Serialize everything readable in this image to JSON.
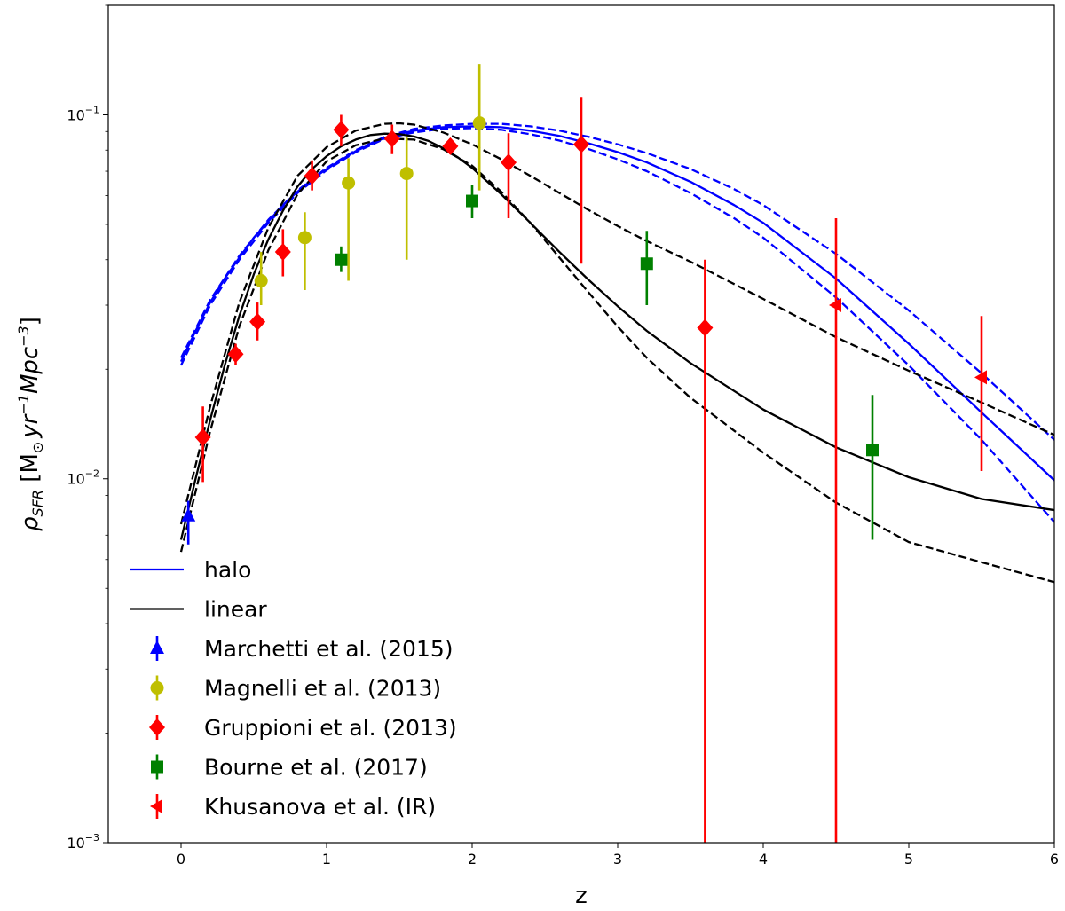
{
  "chart_data": {
    "type": "scatter",
    "title": "",
    "xlabel": "z",
    "ylabel": "ρ_SFR [M⊙ yr⁻¹ Mpc⁻³]",
    "ylabel_parts": {
      "rho": "ρ",
      "sub": "SFR",
      "open": " [M",
      "sun": "⊙",
      "yr": "yr",
      "yr_exp": "−1",
      "mpc": "Mpc",
      "mpc_exp": "−3",
      "close": "]"
    },
    "xlim": [
      -0.5,
      6.0
    ],
    "ylim": [
      0.001,
      0.2
    ],
    "yscale": "log",
    "grid": false,
    "legend_position": "lower-left",
    "x_ticks": [
      {
        "value": 0,
        "label": "0"
      },
      {
        "value": 1,
        "label": "1"
      },
      {
        "value": 2,
        "label": "2"
      },
      {
        "value": 3,
        "label": "3"
      },
      {
        "value": 4,
        "label": "4"
      },
      {
        "value": 5,
        "label": "5"
      },
      {
        "value": 6,
        "label": "6"
      }
    ],
    "y_ticks": [
      {
        "value": 0.001,
        "base": "10",
        "exp": "−3"
      },
      {
        "value": 0.01,
        "base": "10",
        "exp": "−2"
      },
      {
        "value": 0.1,
        "base": "10",
        "exp": "−1"
      }
    ],
    "model_lines": [
      {
        "name": "halo",
        "color": "#0000ff",
        "style": "solid",
        "x": [
          0.0,
          0.1,
          0.2,
          0.3,
          0.4,
          0.5,
          0.6,
          0.7,
          0.8,
          0.9,
          1.0,
          1.2,
          1.4,
          1.6,
          1.8,
          2.0,
          2.2,
          2.4,
          2.6,
          2.8,
          3.0,
          3.2,
          3.5,
          3.8,
          4.0,
          4.5,
          5.0,
          5.5,
          6.0
        ],
        "y": [
          0.021,
          0.0255,
          0.0305,
          0.0355,
          0.0405,
          0.046,
          0.051,
          0.0565,
          0.0615,
          0.0665,
          0.071,
          0.0795,
          0.0865,
          0.0905,
          0.0925,
          0.093,
          0.0925,
          0.0905,
          0.0875,
          0.0835,
          0.079,
          0.074,
          0.0655,
          0.0565,
          0.0505,
          0.0355,
          0.0235,
          0.0152,
          0.0099
        ]
      },
      {
        "name": "halo upper",
        "color": "#0000ff",
        "style": "dashed",
        "x": [
          0.0,
          0.2,
          0.4,
          0.6,
          0.8,
          1.0,
          1.2,
          1.4,
          1.6,
          1.8,
          2.0,
          2.2,
          2.4,
          2.6,
          2.8,
          3.0,
          3.2,
          3.5,
          3.8,
          4.0,
          4.5,
          5.0,
          5.5,
          6.0
        ],
        "y": [
          0.0215,
          0.031,
          0.041,
          0.0515,
          0.062,
          0.0715,
          0.08,
          0.087,
          0.0915,
          0.0935,
          0.0945,
          0.0945,
          0.093,
          0.0905,
          0.087,
          0.083,
          0.0785,
          0.071,
          0.0625,
          0.0565,
          0.0415,
          0.029,
          0.0195,
          0.0128
        ]
      },
      {
        "name": "halo lower",
        "color": "#0000ff",
        "style": "dashed",
        "x": [
          0.0,
          0.2,
          0.4,
          0.6,
          0.8,
          1.0,
          1.2,
          1.4,
          1.6,
          1.8,
          2.0,
          2.2,
          2.4,
          2.6,
          2.8,
          3.0,
          3.2,
          3.5,
          3.8,
          4.0,
          4.5,
          5.0,
          5.5,
          6.0
        ],
        "y": [
          0.0205,
          0.03,
          0.04,
          0.0505,
          0.061,
          0.0705,
          0.079,
          0.086,
          0.0895,
          0.0915,
          0.092,
          0.091,
          0.0885,
          0.085,
          0.0805,
          0.0755,
          0.07,
          0.061,
          0.052,
          0.046,
          0.0315,
          0.0205,
          0.0128,
          0.0076
        ]
      },
      {
        "name": "linear",
        "color": "#000000",
        "style": "solid",
        "x": [
          0.0,
          0.1,
          0.2,
          0.3,
          0.4,
          0.5,
          0.6,
          0.7,
          0.8,
          0.9,
          1.0,
          1.1,
          1.2,
          1.3,
          1.4,
          1.5,
          1.6,
          1.7,
          1.8,
          1.9,
          2.0,
          2.2,
          2.4,
          2.6,
          2.8,
          3.0,
          3.2,
          3.5,
          4.0,
          4.5,
          5.0,
          5.5,
          6.0
        ],
        "y": [
          0.0068,
          0.01,
          0.0145,
          0.0205,
          0.028,
          0.0365,
          0.0455,
          0.0545,
          0.0635,
          0.071,
          0.077,
          0.082,
          0.0855,
          0.088,
          0.0888,
          0.0885,
          0.0872,
          0.0848,
          0.081,
          0.0765,
          0.0715,
          0.0605,
          0.0505,
          0.042,
          0.0352,
          0.0298,
          0.0255,
          0.0208,
          0.0155,
          0.0122,
          0.0101,
          0.0088,
          0.0082
        ]
      },
      {
        "name": "linear upper",
        "color": "#000000",
        "style": "dashed",
        "x": [
          0.0,
          0.2,
          0.4,
          0.6,
          0.8,
          1.0,
          1.2,
          1.4,
          1.5,
          1.6,
          1.8,
          2.0,
          2.2,
          2.4,
          2.6,
          2.8,
          3.0,
          3.2,
          3.5,
          4.0,
          4.5,
          5.0,
          5.5,
          6.0
        ],
        "y": [
          0.0075,
          0.0158,
          0.0305,
          0.049,
          0.068,
          0.0815,
          0.0905,
          0.0945,
          0.0948,
          0.094,
          0.0895,
          0.083,
          0.0755,
          0.068,
          0.061,
          0.0548,
          0.0495,
          0.045,
          0.0395,
          0.0312,
          0.0245,
          0.0198,
          0.0162,
          0.0132
        ]
      },
      {
        "name": "linear lower",
        "color": "#000000",
        "style": "dashed",
        "x": [
          0.0,
          0.2,
          0.4,
          0.6,
          0.8,
          1.0,
          1.2,
          1.4,
          1.6,
          1.8,
          2.0,
          2.2,
          2.4,
          2.6,
          2.8,
          3.0,
          3.2,
          3.5,
          4.0,
          4.5,
          5.0,
          5.5,
          6.0
        ],
        "y": [
          0.0063,
          0.0135,
          0.0262,
          0.0425,
          0.0605,
          0.0745,
          0.0825,
          0.0862,
          0.0855,
          0.0805,
          0.0725,
          0.0615,
          0.0505,
          0.0405,
          0.0325,
          0.0262,
          0.0215,
          0.0167,
          0.0118,
          0.0086,
          0.0067,
          0.0059,
          0.0052
        ]
      }
    ],
    "legend_lines": [
      {
        "label": "halo",
        "color": "#0000ff"
      },
      {
        "label": "linear",
        "color": "#000000"
      }
    ],
    "datasets": [
      {
        "label": "Marchetti et al. (2015)",
        "color": "#0000ff",
        "marker": "triangle-up",
        "points": [
          {
            "x": 0.05,
            "y": 0.0079,
            "lo": 0.0066,
            "hi": 0.0087
          }
        ]
      },
      {
        "label": "Magnelli et al. (2013)",
        "color": "#bfbf00",
        "marker": "circle",
        "points": [
          {
            "x": 0.55,
            "y": 0.035,
            "lo": 0.03,
            "hi": 0.042
          },
          {
            "x": 0.85,
            "y": 0.046,
            "lo": 0.033,
            "hi": 0.054
          },
          {
            "x": 1.15,
            "y": 0.065,
            "lo": 0.035,
            "hi": 0.076
          },
          {
            "x": 1.55,
            "y": 0.069,
            "lo": 0.04,
            "hi": 0.087
          },
          {
            "x": 2.05,
            "y": 0.095,
            "lo": 0.062,
            "hi": 0.138
          }
        ]
      },
      {
        "label": "Gruppioni et al. (2013)",
        "color": "#ff0000",
        "marker": "diamond",
        "points": [
          {
            "x": 0.15,
            "y": 0.013,
            "lo": 0.0098,
            "hi": 0.0158
          },
          {
            "x": 0.375,
            "y": 0.022,
            "lo": 0.0205,
            "hi": 0.0235
          },
          {
            "x": 0.525,
            "y": 0.027,
            "lo": 0.024,
            "hi": 0.0305
          },
          {
            "x": 0.7,
            "y": 0.042,
            "lo": 0.036,
            "hi": 0.0485
          },
          {
            "x": 0.9,
            "y": 0.068,
            "lo": 0.062,
            "hi": 0.075
          },
          {
            "x": 1.1,
            "y": 0.091,
            "lo": 0.082,
            "hi": 0.1
          },
          {
            "x": 1.45,
            "y": 0.086,
            "lo": 0.078,
            "hi": 0.094
          },
          {
            "x": 1.85,
            "y": 0.082,
            "lo": 0.078,
            "hi": 0.086
          },
          {
            "x": 2.25,
            "y": 0.074,
            "lo": 0.052,
            "hi": 0.089
          },
          {
            "x": 2.75,
            "y": 0.083,
            "lo": 0.039,
            "hi": 0.112
          },
          {
            "x": 3.6,
            "y": 0.026,
            "lo": 0.001,
            "hi": 0.04
          }
        ]
      },
      {
        "label": "Bourne et al. (2017)",
        "color": "#008000",
        "marker": "square",
        "points": [
          {
            "x": 1.1,
            "y": 0.04,
            "lo": 0.037,
            "hi": 0.0435
          },
          {
            "x": 2.0,
            "y": 0.058,
            "lo": 0.052,
            "hi": 0.064
          },
          {
            "x": 3.2,
            "y": 0.039,
            "lo": 0.03,
            "hi": 0.048
          },
          {
            "x": 4.75,
            "y": 0.012,
            "lo": 0.0068,
            "hi": 0.017
          }
        ]
      },
      {
        "label": "Khusanova et al. (IR)",
        "color": "#ff0000",
        "marker": "triangle-left",
        "points": [
          {
            "x": 4.5,
            "y": 0.03,
            "lo": 0.001,
            "hi": 0.052
          },
          {
            "x": 5.5,
            "y": 0.019,
            "lo": 0.0105,
            "hi": 0.028
          }
        ]
      }
    ]
  }
}
